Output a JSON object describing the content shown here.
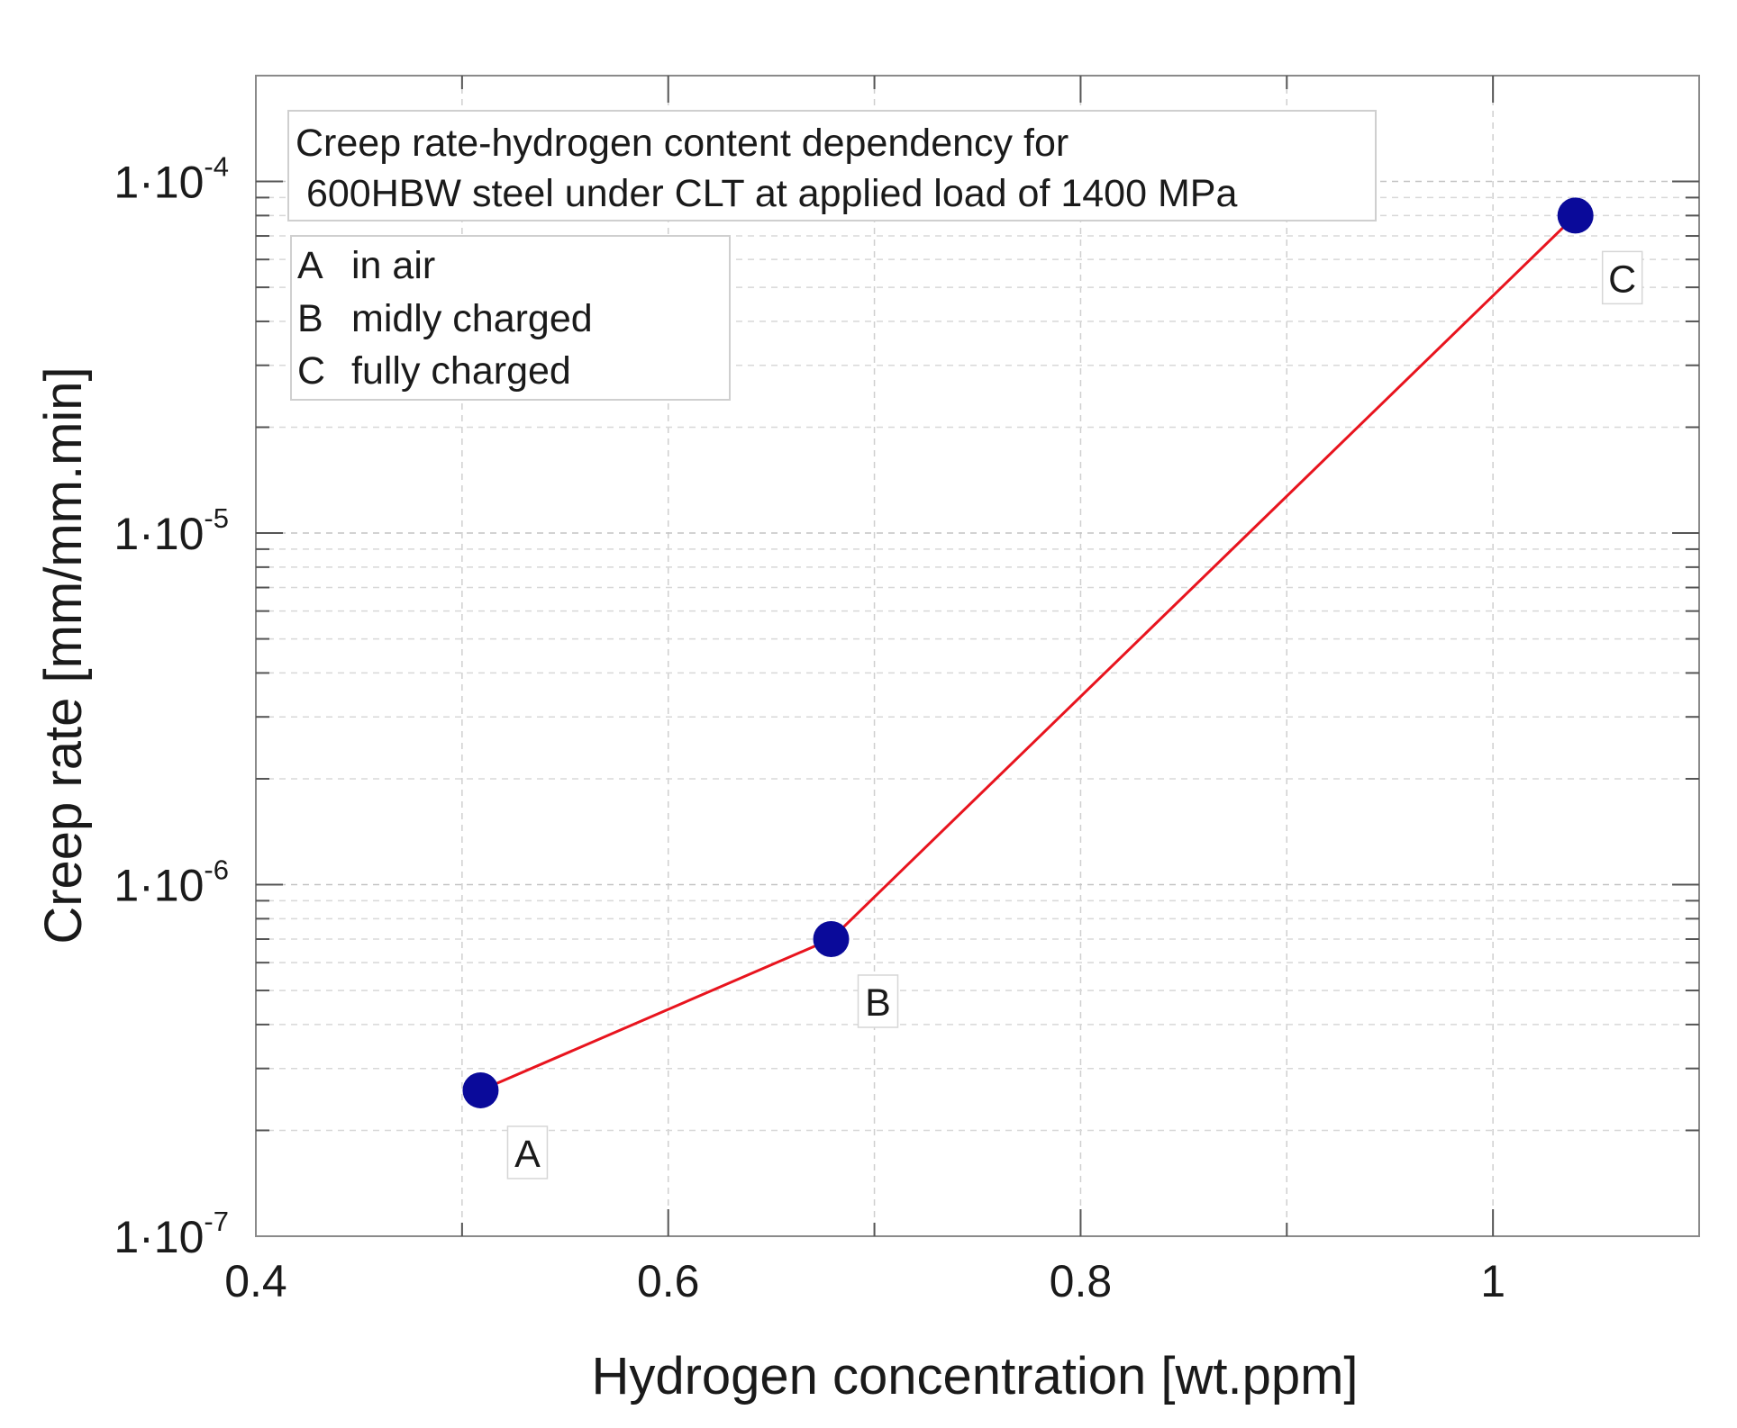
{
  "chart_data": {
    "type": "line",
    "title": "Creep rate-hydrogen content dependency for 600HBW steel under CLT at applied load of 1400 MPa",
    "title_lines": [
      "Creep rate-hydrogen content dependency for",
      " 600HBW steel under CLT at applied load of 1400 MPa"
    ],
    "xlabel": "Hydrogen concentration [wt.ppm]",
    "ylabel": "Creep rate [mm/mm.min]",
    "xscale": "linear",
    "yscale": "log",
    "xlim": [
      0.4,
      1.1
    ],
    "ylim": [
      1e-07,
      0.0002
    ],
    "xticks": [
      0.4,
      0.6,
      0.8,
      1.0
    ],
    "xtick_labels": [
      "0.4",
      "0.6",
      "0.8",
      "1"
    ],
    "yticks": [
      {
        "value": 1e-07,
        "mantissa": "1·10",
        "exponent": "-7"
      },
      {
        "value": 1e-06,
        "mantissa": "1·10",
        "exponent": "-6"
      },
      {
        "value": 1e-05,
        "mantissa": "1·10",
        "exponent": "-5"
      },
      {
        "value": 0.0001,
        "mantissa": "1·10",
        "exponent": "-4"
      }
    ],
    "grid": true,
    "series": [
      {
        "name": "Creep rate",
        "line_color": "#e8141e",
        "marker_color": "#0a0a9a",
        "points": [
          {
            "label": "A",
            "x": 0.509,
            "y": 2.6e-07
          },
          {
            "label": "B",
            "x": 0.679,
            "y": 7e-07
          },
          {
            "label": "C",
            "x": 1.04,
            "y": 8e-05
          }
        ]
      }
    ],
    "legend": {
      "placement": "top-left",
      "entries": [
        {
          "key": "A",
          "text": "in air"
        },
        {
          "key": "B",
          "text": "midly charged"
        },
        {
          "key": "C",
          "text": "fully charged"
        }
      ]
    }
  }
}
